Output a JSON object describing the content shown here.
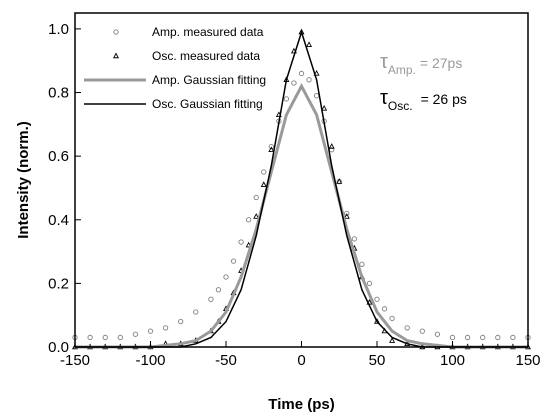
{
  "chart_data": {
    "type": "scatter",
    "xlabel": "Time (ps)",
    "ylabel": "Intensity (norm.)",
    "xlim": [
      -150,
      150
    ],
    "ylim": [
      0,
      1.05
    ],
    "x_ticks": [
      -150,
      -100,
      -50,
      0,
      50,
      100,
      150
    ],
    "y_ticks": [
      0.0,
      0.2,
      0.4,
      0.6,
      0.8,
      1.0
    ],
    "x_tick_labels": [
      "-150",
      "-100",
      "-50",
      "0",
      "50",
      "100",
      "150"
    ],
    "y_tick_labels": [
      "0.0",
      "0.2",
      "0.4",
      "0.6",
      "0.8",
      "1.0"
    ],
    "grid": false,
    "legend_placement": "top-left",
    "legend": [
      {
        "label": "Amp. measured data",
        "marker": "circle",
        "color": "#808080"
      },
      {
        "label": "Osc. measured data",
        "marker": "triangle",
        "color": "#000000"
      },
      {
        "label": "Amp. Gaussian fitting",
        "marker": "line",
        "color": "#9a9a9a"
      },
      {
        "label": "Osc. Gaussian fitting",
        "marker": "line",
        "color": "#000000"
      }
    ],
    "series": [
      {
        "name": "Amp. measured data",
        "kind": "scatter",
        "marker": "circle",
        "color": "#808080",
        "x": [
          -150,
          -140,
          -130,
          -120,
          -110,
          -100,
          -90,
          -80,
          -70,
          -60,
          -55,
          -50,
          -45,
          -40,
          -35,
          -30,
          -25,
          -20,
          -15,
          -10,
          -5,
          0,
          5,
          10,
          15,
          20,
          25,
          30,
          35,
          40,
          45,
          50,
          55,
          60,
          70,
          80,
          90,
          100,
          110,
          120,
          130,
          140,
          150
        ],
        "y": [
          0.03,
          0.03,
          0.03,
          0.03,
          0.04,
          0.05,
          0.06,
          0.08,
          0.11,
          0.15,
          0.18,
          0.22,
          0.27,
          0.33,
          0.4,
          0.47,
          0.55,
          0.63,
          0.71,
          0.78,
          0.83,
          0.86,
          0.84,
          0.79,
          0.71,
          0.62,
          0.52,
          0.42,
          0.34,
          0.26,
          0.2,
          0.15,
          0.12,
          0.09,
          0.06,
          0.05,
          0.04,
          0.03,
          0.03,
          0.03,
          0.03,
          0.03,
          0.03
        ]
      },
      {
        "name": "Osc. measured data",
        "kind": "scatter",
        "marker": "triangle",
        "color": "#000000",
        "x": [
          -150,
          -140,
          -130,
          -120,
          -110,
          -100,
          -90,
          -80,
          -70,
          -60,
          -55,
          -50,
          -45,
          -40,
          -35,
          -30,
          -25,
          -20,
          -15,
          -10,
          -5,
          0,
          5,
          10,
          15,
          20,
          25,
          30,
          35,
          40,
          45,
          50,
          55,
          60,
          70,
          80,
          90,
          100,
          110,
          120,
          130,
          140,
          150
        ],
        "y": [
          0.0,
          0.0,
          0.0,
          0.0,
          0.0,
          0.0,
          0.01,
          0.01,
          0.02,
          0.05,
          0.08,
          0.12,
          0.17,
          0.24,
          0.32,
          0.41,
          0.51,
          0.62,
          0.73,
          0.84,
          0.93,
          0.99,
          0.95,
          0.86,
          0.75,
          0.63,
          0.52,
          0.41,
          0.31,
          0.22,
          0.14,
          0.08,
          0.05,
          0.02,
          0.01,
          0.0,
          0.0,
          0.0,
          0.0,
          0.0,
          0.0,
          0.0,
          0.0
        ]
      },
      {
        "name": "Amp. Gaussian fitting",
        "kind": "line",
        "color": "#9a9a9a",
        "x": [
          -150,
          -120,
          -100,
          -80,
          -70,
          -60,
          -50,
          -40,
          -30,
          -20,
          -10,
          0,
          10,
          20,
          30,
          40,
          50,
          60,
          70,
          80,
          100,
          120,
          150
        ],
        "y": [
          0.0,
          0.0,
          0.0,
          0.01,
          0.02,
          0.05,
          0.11,
          0.22,
          0.37,
          0.55,
          0.73,
          0.82,
          0.73,
          0.55,
          0.37,
          0.22,
          0.11,
          0.05,
          0.02,
          0.01,
          0.0,
          0.0,
          0.0
        ]
      },
      {
        "name": "Osc. Gaussian fitting",
        "kind": "line",
        "color": "#000000",
        "x": [
          -150,
          -120,
          -100,
          -80,
          -70,
          -60,
          -50,
          -40,
          -30,
          -20,
          -10,
          0,
          10,
          20,
          30,
          40,
          50,
          60,
          70,
          80,
          100,
          120,
          150
        ],
        "y": [
          0.0,
          0.0,
          0.0,
          0.0,
          0.01,
          0.03,
          0.08,
          0.18,
          0.35,
          0.57,
          0.84,
          0.99,
          0.84,
          0.57,
          0.35,
          0.18,
          0.08,
          0.03,
          0.01,
          0.0,
          0.0,
          0.0,
          0.0
        ]
      }
    ],
    "annotations": [
      {
        "symbol": "τ",
        "subscript": "Amp.",
        "value": "= 27ps",
        "color": "#9a9a9a"
      },
      {
        "symbol": "τ",
        "subscript": "Osc.",
        "value": "= 26 ps",
        "color": "#000000"
      }
    ]
  }
}
